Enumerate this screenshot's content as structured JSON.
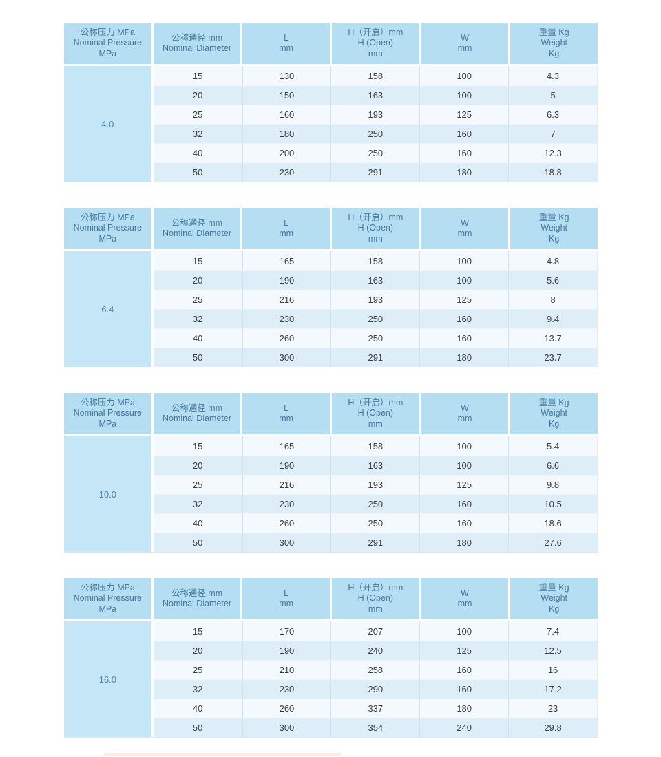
{
  "page": {
    "background": "#ffffff"
  },
  "colors": {
    "header_bg": "#b5def2",
    "header_text": "#44789f",
    "pressure_col_bg": "#c5e6f7",
    "pressure_text": "#4c86ac",
    "row_odd_bg": "#f3f9fd",
    "row_even_bg": "#ddeef8",
    "cell_text": "#3d3d3d",
    "grid_line": "#cfe2ed"
  },
  "header_columns": [
    {
      "line1": "公称压力 MPa",
      "line2": "Nominal Pressure",
      "line3": "MPa"
    },
    {
      "line1": "公称通径 mm",
      "line2": "Nominal Diameter",
      "line3": ""
    },
    {
      "line1": "L",
      "line2": "mm",
      "line3": ""
    },
    {
      "line1": "H（开启）mm",
      "line2": "H (Open)",
      "line3": "mm"
    },
    {
      "line1": "W",
      "line2": "mm",
      "line3": ""
    },
    {
      "line1": "重量 Kg",
      "line2": "Weight",
      "line3": "Kg"
    }
  ],
  "tables": [
    {
      "pressure": "4.0",
      "rows": [
        [
          "15",
          "130",
          "158",
          "100",
          "4.3"
        ],
        [
          "20",
          "150",
          "163",
          "100",
          "5"
        ],
        [
          "25",
          "160",
          "193",
          "125",
          "6.3"
        ],
        [
          "32",
          "180",
          "250",
          "160",
          "7"
        ],
        [
          "40",
          "200",
          "250",
          "160",
          "12.3"
        ],
        [
          "50",
          "230",
          "291",
          "180",
          "18.8"
        ]
      ]
    },
    {
      "pressure": "6.4",
      "rows": [
        [
          "15",
          "165",
          "158",
          "100",
          "4.8"
        ],
        [
          "20",
          "190",
          "163",
          "100",
          "5.6"
        ],
        [
          "25",
          "216",
          "193",
          "125",
          "8"
        ],
        [
          "32",
          "230",
          "250",
          "160",
          "9.4"
        ],
        [
          "40",
          "260",
          "250",
          "160",
          "13.7"
        ],
        [
          "50",
          "300",
          "291",
          "180",
          "23.7"
        ]
      ]
    },
    {
      "pressure": "10.0",
      "rows": [
        [
          "15",
          "165",
          "158",
          "100",
          "5.4"
        ],
        [
          "20",
          "190",
          "163",
          "100",
          "6.6"
        ],
        [
          "25",
          "216",
          "193",
          "125",
          "9.8"
        ],
        [
          "32",
          "230",
          "250",
          "160",
          "10.5"
        ],
        [
          "40",
          "260",
          "250",
          "160",
          "18.6"
        ],
        [
          "50",
          "300",
          "291",
          "180",
          "27.6"
        ]
      ]
    },
    {
      "pressure": "16.0",
      "rows": [
        [
          "15",
          "170",
          "207",
          "100",
          "7.4"
        ],
        [
          "20",
          "190",
          "240",
          "125",
          "12.5"
        ],
        [
          "25",
          "210",
          "258",
          "160",
          "16"
        ],
        [
          "32",
          "230",
          "290",
          "160",
          "17.2"
        ],
        [
          "40",
          "260",
          "337",
          "180",
          "23"
        ],
        [
          "50",
          "300",
          "354",
          "240",
          "29.8"
        ]
      ]
    }
  ]
}
